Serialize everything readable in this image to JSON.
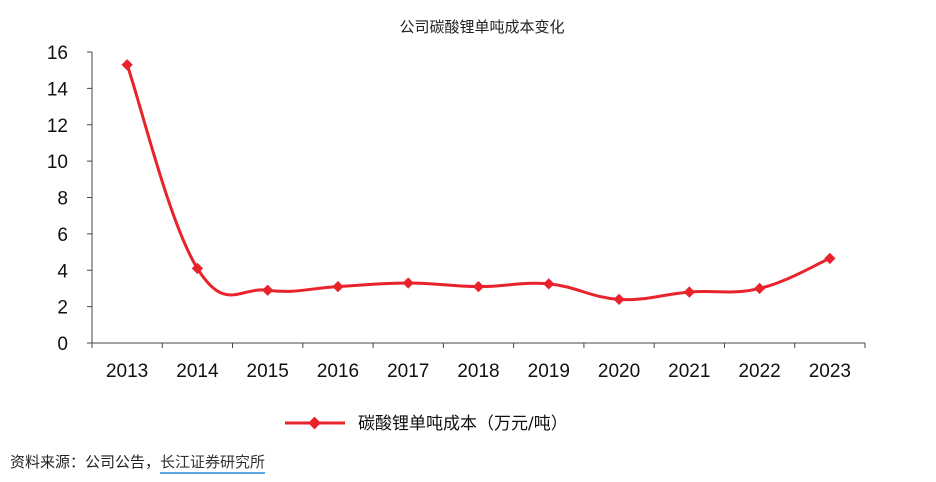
{
  "chart_data": {
    "type": "line",
    "title": "公司碳酸锂单吨成本变化",
    "x": [
      "2013",
      "2014",
      "2015",
      "2016",
      "2017",
      "2018",
      "2019",
      "2020",
      "2021",
      "2022",
      "2023"
    ],
    "series": [
      {
        "name": "碳酸锂单吨成本（万元/吨）",
        "values": [
          15.3,
          4.1,
          2.9,
          3.1,
          3.3,
          3.1,
          3.25,
          2.4,
          2.8,
          3.0,
          4.65
        ]
      }
    ],
    "ylim": [
      0,
      16
    ],
    "yticks": [
      "0",
      "2",
      "4",
      "6",
      "8",
      "10",
      "12",
      "14",
      "16"
    ],
    "line_color": "#e8232b",
    "legend_position": "bottom"
  },
  "source": {
    "prefix": "资料来源：公司公告，",
    "link": "长江证券研究所"
  }
}
